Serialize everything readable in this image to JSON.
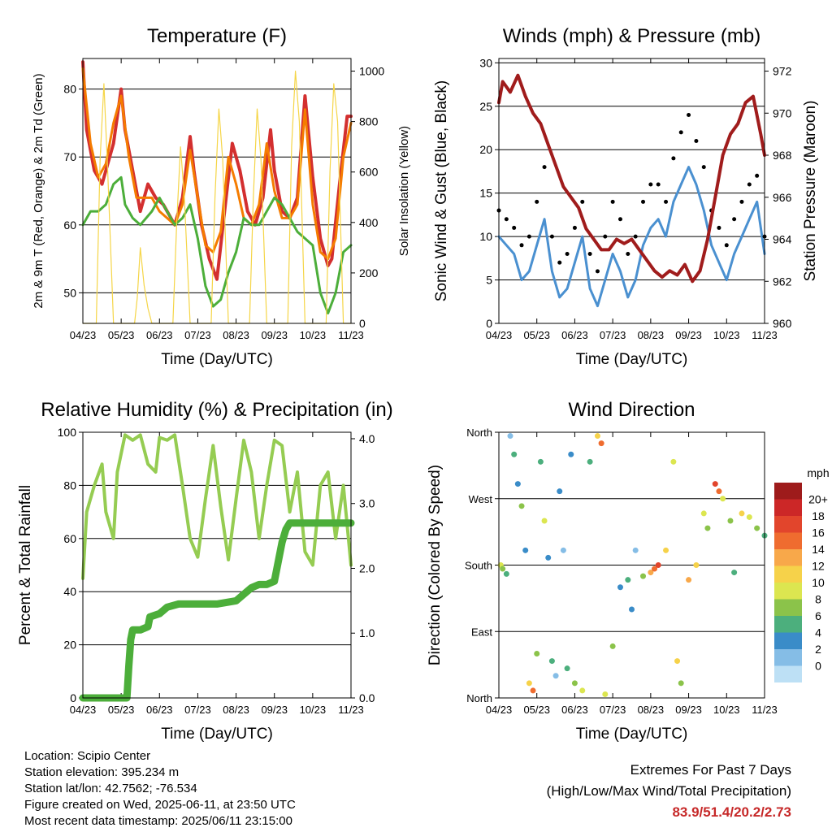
{
  "chart_data": [
    {
      "type": "line",
      "title": "Temperature (F)",
      "xlabel": "Time (Day/UTC)",
      "ylabel": "2m & 9m T (Red, Orange) & 2m Td (Green)",
      "ylabel_right": "Solar Insolation (Yellow)",
      "x_ticks": [
        "04/23",
        "05/23",
        "06/23",
        "07/23",
        "08/23",
        "09/23",
        "10/23",
        "11/23"
      ],
      "ylim": [
        45.5,
        84.5
      ],
      "yticks": [
        50,
        60,
        70,
        80
      ],
      "ylim_right": [
        0,
        1050
      ],
      "yticks_right": [
        0,
        200,
        400,
        600,
        800,
        1000
      ],
      "grid": "horizontal",
      "colors": {
        "t2m": "#d32f2f",
        "t9m": "#f57c00",
        "td": "#4cae3a",
        "solar": "#f5d547"
      },
      "series": [
        {
          "key": "t2m",
          "x": [
            0,
            0.1,
            0.3,
            0.5,
            0.8,
            1.0,
            1.1,
            1.3,
            1.4,
            1.5,
            1.7,
            1.9,
            2.1,
            2.4,
            2.6,
            2.8,
            2.9,
            3.1,
            3.3,
            3.5,
            3.7,
            3.9,
            4.1,
            4.3,
            4.5,
            4.7,
            4.9,
            5.0,
            5.2,
            5.4,
            5.6,
            5.8,
            6.0,
            6.2,
            6.4,
            6.5,
            6.7,
            6.9,
            7.0
          ],
          "values": [
            84,
            74,
            68,
            66,
            72,
            80,
            74,
            68,
            65,
            62,
            66,
            64,
            63,
            60,
            64,
            73,
            68,
            60,
            55,
            52,
            62,
            72,
            68,
            62,
            60,
            64,
            74,
            68,
            62,
            61,
            64,
            79,
            67,
            58,
            54,
            55,
            66,
            76,
            76
          ]
        },
        {
          "key": "t9m",
          "x": [
            0,
            0.2,
            0.4,
            0.6,
            0.8,
            1.0,
            1.2,
            1.4,
            1.6,
            1.8,
            2.0,
            2.2,
            2.4,
            2.6,
            2.8,
            3.0,
            3.2,
            3.4,
            3.6,
            3.8,
            4.0,
            4.2,
            4.4,
            4.6,
            4.8,
            5.0,
            5.2,
            5.4,
            5.6,
            5.8,
            6.0,
            6.2,
            6.4,
            6.6,
            6.8,
            7.0
          ],
          "values": [
            83,
            72,
            67,
            69,
            75,
            79,
            70,
            64,
            64,
            64,
            62,
            61,
            60,
            63,
            71,
            64,
            57,
            56,
            59,
            70,
            66,
            61,
            60,
            63,
            72,
            65,
            61,
            61,
            63,
            77,
            63,
            56,
            55,
            58,
            70,
            75
          ]
        },
        {
          "key": "td",
          "x": [
            0,
            0.2,
            0.4,
            0.6,
            0.8,
            1.0,
            1.1,
            1.3,
            1.5,
            1.8,
            2.0,
            2.2,
            2.4,
            2.6,
            2.8,
            3.0,
            3.2,
            3.4,
            3.6,
            3.8,
            4.0,
            4.2,
            4.4,
            4.6,
            4.8,
            5.0,
            5.2,
            5.4,
            5.6,
            5.8,
            6.0,
            6.2,
            6.4,
            6.6,
            6.8,
            7.0
          ],
          "values": [
            60,
            62,
            62,
            63,
            66,
            67,
            63,
            61,
            60,
            62,
            64,
            62,
            60,
            61,
            63,
            58,
            51,
            48,
            49,
            53,
            56,
            61,
            60,
            60,
            62,
            64,
            63,
            61,
            59,
            58,
            57,
            50,
            47,
            50,
            56,
            57
          ]
        },
        {
          "key": "solar",
          "x": [
            0,
            0.35,
            0.45,
            0.55,
            0.65,
            0.8,
            1.35,
            1.42,
            1.5,
            1.6,
            1.7,
            1.8,
            2.35,
            2.45,
            2.55,
            2.65,
            2.8,
            3.35,
            3.45,
            3.55,
            3.65,
            3.8,
            4.35,
            4.45,
            4.55,
            4.65,
            4.8,
            5.35,
            5.45,
            5.55,
            5.65,
            5.8,
            6.35,
            6.45,
            6.55,
            6.65,
            6.8,
            7.0
          ],
          "values": [
            0,
            0,
            650,
            950,
            600,
            0,
            0,
            100,
            300,
            150,
            60,
            0,
            0,
            400,
            700,
            500,
            0,
            0,
            500,
            850,
            650,
            0,
            0,
            500,
            850,
            650,
            0,
            0,
            700,
            1000,
            800,
            0,
            0,
            600,
            950,
            800,
            0,
            0
          ]
        }
      ]
    },
    {
      "type": "line",
      "title": "Winds (mph) & Pressure (mb)",
      "xlabel": "Time (Day/UTC)",
      "ylabel": "Sonic Wind & Gust (Blue, Black)",
      "ylabel_right": "Station Pressure (Maroon)",
      "x_ticks": [
        "04/23",
        "05/23",
        "06/23",
        "07/23",
        "08/23",
        "09/23",
        "10/23",
        "11/23"
      ],
      "ylim": [
        0,
        30.5
      ],
      "yticks": [
        0,
        5,
        10,
        15,
        20,
        25,
        30
      ],
      "ylim_right": [
        960,
        972.6
      ],
      "yticks_right": [
        960,
        962,
        964,
        966,
        968,
        970,
        972
      ],
      "grid": "horizontal",
      "colors": {
        "wind": "#4a90d0",
        "gust": "#000000",
        "pressure": "#a01c1c"
      },
      "series": [
        {
          "key": "wind",
          "x": [
            0,
            0.2,
            0.4,
            0.6,
            0.8,
            1.0,
            1.2,
            1.4,
            1.6,
            1.8,
            2.0,
            2.2,
            2.4,
            2.6,
            2.8,
            3.0,
            3.2,
            3.4,
            3.6,
            3.8,
            4.0,
            4.2,
            4.4,
            4.6,
            4.8,
            5.0,
            5.2,
            5.4,
            5.6,
            5.8,
            6.0,
            6.2,
            6.4,
            6.6,
            6.8,
            7.0
          ],
          "values": [
            10,
            9,
            8,
            5,
            6,
            9,
            12,
            6,
            3,
            4,
            7,
            10,
            4,
            2,
            5,
            8,
            6,
            3,
            5,
            9,
            11,
            12,
            10,
            14,
            16,
            18,
            16,
            13,
            9,
            7,
            5,
            8,
            10,
            12,
            14,
            8
          ]
        },
        {
          "key": "gust",
          "x": [
            0,
            0.2,
            0.4,
            0.6,
            0.8,
            1.0,
            1.2,
            1.4,
            1.6,
            1.8,
            2.0,
            2.2,
            2.4,
            2.6,
            2.8,
            3.0,
            3.2,
            3.4,
            3.6,
            3.8,
            4.0,
            4.2,
            4.4,
            4.6,
            4.8,
            5.0,
            5.2,
            5.4,
            5.6,
            5.8,
            6.0,
            6.2,
            6.4,
            6.6,
            6.8,
            7.0
          ],
          "values": [
            13,
            12,
            11,
            9,
            10,
            14,
            18,
            10,
            7,
            8,
            11,
            14,
            8,
            6,
            10,
            14,
            12,
            8,
            10,
            14,
            16,
            16,
            14,
            19,
            22,
            24,
            21,
            18,
            13,
            11,
            9,
            12,
            14,
            16,
            17,
            10
          ]
        },
        {
          "key": "pressure",
          "x": [
            0,
            0.1,
            0.3,
            0.5,
            0.7,
            0.9,
            1.1,
            1.3,
            1.5,
            1.7,
            1.9,
            2.1,
            2.3,
            2.5,
            2.7,
            2.9,
            3.1,
            3.3,
            3.5,
            3.7,
            3.9,
            4.1,
            4.3,
            4.5,
            4.7,
            4.9,
            5.1,
            5.3,
            5.5,
            5.7,
            5.9,
            6.1,
            6.3,
            6.5,
            6.7,
            6.9,
            7.0
          ],
          "values": [
            970.5,
            971.5,
            971,
            971.8,
            970.8,
            970,
            969.5,
            968.5,
            967.5,
            966.5,
            966,
            965.5,
            964.5,
            964,
            963.5,
            963.5,
            964,
            963.8,
            964,
            963.5,
            963,
            962.5,
            962.2,
            962.5,
            962.3,
            962.8,
            962,
            962.5,
            964,
            966,
            968,
            969,
            969.5,
            970.5,
            970.8,
            969,
            968
          ]
        }
      ]
    },
    {
      "type": "line",
      "title": "Relative Humidity (%) & Precipitation (in)",
      "xlabel": "Time (Day/UTC)",
      "ylabel": "Percent & Total Rainfall",
      "x_ticks": [
        "04/23",
        "05/23",
        "06/23",
        "07/23",
        "08/23",
        "09/23",
        "10/23",
        "11/23"
      ],
      "ylim": [
        0,
        100
      ],
      "yticks": [
        0,
        20,
        40,
        60,
        80,
        100
      ],
      "ylim_right": [
        0,
        4.1
      ],
      "yticks_right": [
        "0.0",
        "1.0",
        "2.0",
        "3.0",
        "4.0"
      ],
      "grid": "horizontal",
      "colors": {
        "rh": "#95cc52",
        "precip": "#4cae3a"
      },
      "series": [
        {
          "key": "rh",
          "x": [
            0,
            0.1,
            0.3,
            0.5,
            0.6,
            0.8,
            0.9,
            1.1,
            1.3,
            1.5,
            1.7,
            1.9,
            2.0,
            2.2,
            2.4,
            2.6,
            2.8,
            3.0,
            3.2,
            3.4,
            3.6,
            3.8,
            4.0,
            4.2,
            4.4,
            4.6,
            4.8,
            5.0,
            5.2,
            5.4,
            5.6,
            5.8,
            6.0,
            6.2,
            6.4,
            6.6,
            6.8,
            7.0
          ],
          "values": [
            45,
            70,
            80,
            88,
            70,
            60,
            85,
            99,
            97,
            99,
            88,
            85,
            98,
            97,
            99,
            80,
            60,
            53,
            75,
            95,
            72,
            52,
            75,
            97,
            85,
            60,
            80,
            97,
            95,
            70,
            85,
            55,
            50,
            80,
            85,
            60,
            80,
            50
          ]
        },
        {
          "key": "precip",
          "x": [
            0,
            1.15,
            1.2,
            1.25,
            1.3,
            1.5,
            1.7,
            1.75,
            2.0,
            2.2,
            2.5,
            3.0,
            3.5,
            4.0,
            4.2,
            4.4,
            4.6,
            4.8,
            5.0,
            5.1,
            5.2,
            5.3,
            5.4,
            5.6,
            5.8,
            6.0,
            6.5,
            7.0
          ],
          "values": [
            0,
            0,
            0.5,
            0.9,
            1.05,
            1.05,
            1.1,
            1.25,
            1.3,
            1.4,
            1.45,
            1.45,
            1.45,
            1.5,
            1.6,
            1.7,
            1.75,
            1.75,
            1.8,
            2.1,
            2.4,
            2.6,
            2.7,
            2.7,
            2.7,
            2.7,
            2.7,
            2.7
          ]
        }
      ]
    },
    {
      "type": "scatter",
      "title": "Wind Direction",
      "xlabel": "Time (Day/UTC)",
      "ylabel": "Direction (Colored By Speed)",
      "x_ticks": [
        "04/23",
        "05/23",
        "06/23",
        "07/23",
        "08/23",
        "09/23",
        "10/23",
        "11/23"
      ],
      "y_ticks": [
        "North",
        "East",
        "South",
        "West",
        "North"
      ],
      "ylim": [
        0,
        360
      ],
      "grid": "horizontal",
      "legend_title": "mph",
      "legend_labels": [
        "20+",
        "18",
        "16",
        "14",
        "12",
        "10",
        "8",
        "6",
        "4",
        "2",
        "0"
      ],
      "legend_colors": [
        "#9e1b1b",
        "#cc2727",
        "#e2452c",
        "#ef6c2f",
        "#f8a84a",
        "#f6d24a",
        "#dce650",
        "#8bc34a",
        "#4caf7d",
        "#3a8cc8",
        "#85bde6",
        "#bde0f5"
      ],
      "points": [
        {
          "x": 0.05,
          "y": 180,
          "s": 10
        },
        {
          "x": 0.1,
          "y": 175,
          "s": 8
        },
        {
          "x": 0.2,
          "y": 168,
          "s": 6
        },
        {
          "x": 0.3,
          "y": 355,
          "s": 2
        },
        {
          "x": 0.4,
          "y": 330,
          "s": 6
        },
        {
          "x": 0.5,
          "y": 290,
          "s": 4
        },
        {
          "x": 0.6,
          "y": 260,
          "s": 8
        },
        {
          "x": 0.7,
          "y": 200,
          "s": 4
        },
        {
          "x": 0.8,
          "y": 20,
          "s": 12
        },
        {
          "x": 0.9,
          "y": 10,
          "s": 16
        },
        {
          "x": 1.0,
          "y": 60,
          "s": 8
        },
        {
          "x": 1.1,
          "y": 320,
          "s": 6
        },
        {
          "x": 1.2,
          "y": 240,
          "s": 10
        },
        {
          "x": 1.3,
          "y": 190,
          "s": 4
        },
        {
          "x": 1.4,
          "y": 50,
          "s": 6
        },
        {
          "x": 1.5,
          "y": 30,
          "s": 2
        },
        {
          "x": 1.6,
          "y": 280,
          "s": 4
        },
        {
          "x": 1.7,
          "y": 200,
          "s": 2
        },
        {
          "x": 1.8,
          "y": 40,
          "s": 6
        },
        {
          "x": 1.9,
          "y": 330,
          "s": 4
        },
        {
          "x": 2.0,
          "y": 20,
          "s": 8
        },
        {
          "x": 2.2,
          "y": 10,
          "s": 10
        },
        {
          "x": 2.4,
          "y": 320,
          "s": 6
        },
        {
          "x": 2.6,
          "y": 355,
          "s": 12
        },
        {
          "x": 2.7,
          "y": 345,
          "s": 16
        },
        {
          "x": 2.8,
          "y": 5,
          "s": 10
        },
        {
          "x": 3.0,
          "y": 70,
          "s": 8
        },
        {
          "x": 3.2,
          "y": 150,
          "s": 4
        },
        {
          "x": 3.4,
          "y": 160,
          "s": 6
        },
        {
          "x": 3.5,
          "y": 120,
          "s": 4
        },
        {
          "x": 3.6,
          "y": 200,
          "s": 2
        },
        {
          "x": 3.8,
          "y": 165,
          "s": 8
        },
        {
          "x": 4.0,
          "y": 170,
          "s": 14
        },
        {
          "x": 4.1,
          "y": 175,
          "s": 16
        },
        {
          "x": 4.2,
          "y": 180,
          "s": 18
        },
        {
          "x": 4.4,
          "y": 200,
          "s": 12
        },
        {
          "x": 4.6,
          "y": 320,
          "s": 10
        },
        {
          "x": 4.7,
          "y": 50,
          "s": 12
        },
        {
          "x": 4.8,
          "y": 20,
          "s": 8
        },
        {
          "x": 5.0,
          "y": 160,
          "s": 14
        },
        {
          "x": 5.2,
          "y": 180,
          "s": 12
        },
        {
          "x": 5.4,
          "y": 250,
          "s": 10
        },
        {
          "x": 5.5,
          "y": 230,
          "s": 8
        },
        {
          "x": 5.7,
          "y": 290,
          "s": 18
        },
        {
          "x": 5.8,
          "y": 280,
          "s": 16
        },
        {
          "x": 5.9,
          "y": 270,
          "s": 10
        },
        {
          "x": 6.1,
          "y": 240,
          "s": 8
        },
        {
          "x": 6.2,
          "y": 170,
          "s": 6
        },
        {
          "x": 6.4,
          "y": 250,
          "s": 12
        },
        {
          "x": 6.6,
          "y": 245,
          "s": 10
        },
        {
          "x": 6.8,
          "y": 230,
          "s": 8
        },
        {
          "x": 7.0,
          "y": 220,
          "s": 6
        }
      ]
    }
  ],
  "station": {
    "location": "Location: Scipio Center",
    "elevation": "Station elevation: 395.234 m",
    "latlon": "Station lat/lon: 42.7562; -76.534",
    "created": "Figure created on Wed, 2025-06-11, at 23:50 UTC",
    "timestamp": "Most recent data timestamp: 2025/06/11 23:15:00"
  },
  "extremes": {
    "title": "Extremes For Past 7 Days",
    "subtitle": "(High/Low/Max Wind/Total Precipitation)",
    "values": "83.9/51.4/20.2/2.73"
  }
}
